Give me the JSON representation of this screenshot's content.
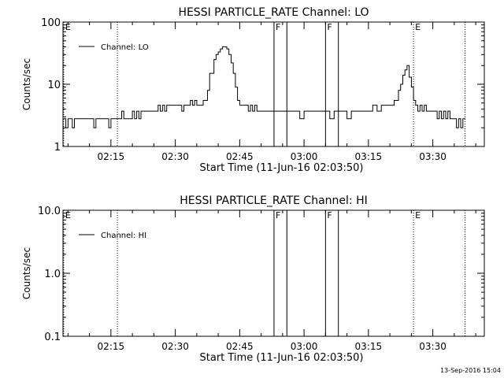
{
  "footer": {
    "timestamp": "13-Sep-2016 15:04"
  },
  "chart_data": [
    {
      "type": "line",
      "title": "HESSI PARTICLE_RATE Channel: LO",
      "xlabel": "Start Time (11-Jun-16 02:03:50)",
      "ylabel": "Counts/sec",
      "yscale": "log",
      "xlim": [
        "02:03:50",
        "03:42:00"
      ],
      "ylim": [
        1,
        100
      ],
      "x_ticks": [
        "02:15",
        "02:30",
        "02:45",
        "03:00",
        "03:15",
        "03:30"
      ],
      "y_ticks": [
        "1",
        "10",
        "100"
      ],
      "legend": {
        "placement": "top-left",
        "entries": [
          "Channel: LO"
        ]
      },
      "markers": [
        {
          "label": "E",
          "time": "02:04",
          "style": "dotted"
        },
        {
          "label": "",
          "time": "02:16:30",
          "style": "dotted"
        },
        {
          "label": "F",
          "time": "02:53",
          "style": "solid"
        },
        {
          "label": "",
          "time": "02:56",
          "style": "solid"
        },
        {
          "label": "F",
          "time": "03:05",
          "style": "solid"
        },
        {
          "label": "",
          "time": "03:08",
          "style": "solid"
        },
        {
          "label": "E",
          "time": "03:25:30",
          "style": "dotted"
        },
        {
          "label": "",
          "time": "03:37:30",
          "style": "dotted"
        }
      ],
      "series": [
        {
          "name": "Channel: LO",
          "x": [
            "02:04",
            "02:04:30",
            "02:05",
            "02:05:30",
            "02:06",
            "02:06:30",
            "02:07",
            "02:08",
            "02:09",
            "02:10",
            "02:10:30",
            "02:11",
            "02:11:30",
            "02:12",
            "02:13",
            "02:14",
            "02:14:30",
            "02:15",
            "02:16",
            "02:17",
            "02:17:30",
            "02:18",
            "02:19",
            "02:20",
            "02:20:30",
            "02:21",
            "02:21:30",
            "02:22",
            "02:22:30",
            "02:23",
            "02:24",
            "02:25",
            "02:26",
            "02:26:30",
            "02:27",
            "02:27:30",
            "02:28",
            "02:29",
            "02:30",
            "02:31",
            "02:31:30",
            "02:32",
            "02:33",
            "02:33:30",
            "02:34",
            "02:34:30",
            "02:35",
            "02:35:30",
            "02:36",
            "02:36:30",
            "02:37",
            "02:37:30",
            "02:38",
            "02:39",
            "02:39:30",
            "02:40",
            "02:40:30",
            "02:41",
            "02:41:30",
            "02:42",
            "02:42:30",
            "02:43",
            "02:43:30",
            "02:44",
            "02:44:30",
            "02:45",
            "02:46",
            "02:47",
            "02:47:30",
            "02:48",
            "02:48:30",
            "02:49",
            "02:49:30",
            "02:50",
            "02:51",
            "02:52",
            "02:53",
            "02:54",
            "02:55",
            "02:56",
            "02:57",
            "02:58",
            "02:59",
            "03:00",
            "03:01",
            "03:02",
            "03:03",
            "03:04",
            "03:05",
            "03:06",
            "03:07",
            "03:08",
            "03:09",
            "03:10",
            "03:11",
            "03:12",
            "03:13",
            "03:14",
            "03:15",
            "03:16",
            "03:17",
            "03:18",
            "03:19",
            "03:20",
            "03:21",
            "03:22",
            "03:22:30",
            "03:23",
            "03:23:30",
            "03:24",
            "03:24:30",
            "03:25",
            "03:25:30",
            "03:26",
            "03:26:30",
            "03:27",
            "03:27:30",
            "03:28",
            "03:28:30",
            "03:29",
            "03:30",
            "03:31",
            "03:31:30",
            "03:32",
            "03:32:30",
            "03:33",
            "03:33:30",
            "03:34",
            "03:34:30",
            "03:35",
            "03:35:30",
            "03:36",
            "03:36:30",
            "03:37",
            "03:37:30"
          ],
          "y": [
            2.8,
            2.0,
            2.8,
            2.8,
            2.0,
            2.8,
            2.8,
            2.8,
            2.8,
            2.8,
            2.8,
            2.0,
            2.8,
            2.8,
            2.8,
            2.8,
            2.0,
            2.8,
            2.8,
            2.8,
            3.7,
            2.8,
            2.8,
            3.7,
            2.8,
            3.7,
            2.8,
            3.7,
            3.7,
            3.7,
            3.7,
            3.7,
            4.6,
            3.7,
            4.6,
            3.7,
            4.6,
            4.6,
            4.6,
            4.6,
            3.7,
            4.6,
            4.6,
            5.5,
            4.6,
            5.5,
            4.6,
            4.6,
            4.6,
            5.5,
            5.5,
            8.0,
            15,
            25,
            30,
            33,
            37,
            40,
            40,
            37,
            30,
            22,
            15,
            9,
            5.5,
            4.6,
            4.6,
            3.7,
            4.6,
            3.7,
            4.6,
            3.7,
            3.7,
            3.7,
            3.7,
            3.7,
            3.7,
            3.7,
            3.7,
            3.7,
            3.7,
            3.7,
            2.8,
            3.7,
            3.7,
            3.7,
            3.7,
            3.7,
            3.7,
            2.8,
            3.7,
            3.7,
            3.7,
            2.8,
            3.7,
            3.7,
            3.7,
            3.7,
            3.7,
            4.6,
            3.7,
            4.6,
            4.6,
            4.6,
            5.5,
            8,
            10,
            14,
            17,
            20,
            13,
            9,
            5.5,
            4.6,
            3.7,
            4.6,
            3.7,
            4.6,
            3.7,
            3.7,
            3.7,
            2.8,
            3.7,
            2.8,
            3.7,
            2.8,
            3.7,
            2.8,
            2.8,
            2.8,
            2.0,
            2.8,
            2.0,
            2.8,
            2.8
          ]
        }
      ]
    },
    {
      "type": "line",
      "title": "HESSI PARTICLE_RATE Channel: HI",
      "xlabel": "Start Time (11-Jun-16 02:03:50)",
      "ylabel": "Counts/sec",
      "yscale": "log",
      "xlim": [
        "02:03:50",
        "03:42:00"
      ],
      "ylim": [
        0.1,
        10.0
      ],
      "x_ticks": [
        "02:15",
        "02:30",
        "02:45",
        "03:00",
        "03:15",
        "03:30"
      ],
      "y_ticks": [
        "0.1",
        "1.0",
        "10.0"
      ],
      "legend": {
        "placement": "top-left",
        "entries": [
          "Channel: HI"
        ]
      },
      "markers": [
        {
          "label": "E",
          "time": "02:04",
          "style": "dotted"
        },
        {
          "label": "",
          "time": "02:16:30",
          "style": "dotted"
        },
        {
          "label": "F",
          "time": "02:53",
          "style": "solid"
        },
        {
          "label": "",
          "time": "02:56",
          "style": "solid"
        },
        {
          "label": "F",
          "time": "03:05",
          "style": "solid"
        },
        {
          "label": "",
          "time": "03:08",
          "style": "solid"
        },
        {
          "label": "E",
          "time": "03:25:30",
          "style": "dotted"
        },
        {
          "label": "",
          "time": "03:37:30",
          "style": "dotted"
        }
      ],
      "series": [
        {
          "name": "Channel: HI",
          "x": [],
          "y": []
        }
      ]
    }
  ]
}
